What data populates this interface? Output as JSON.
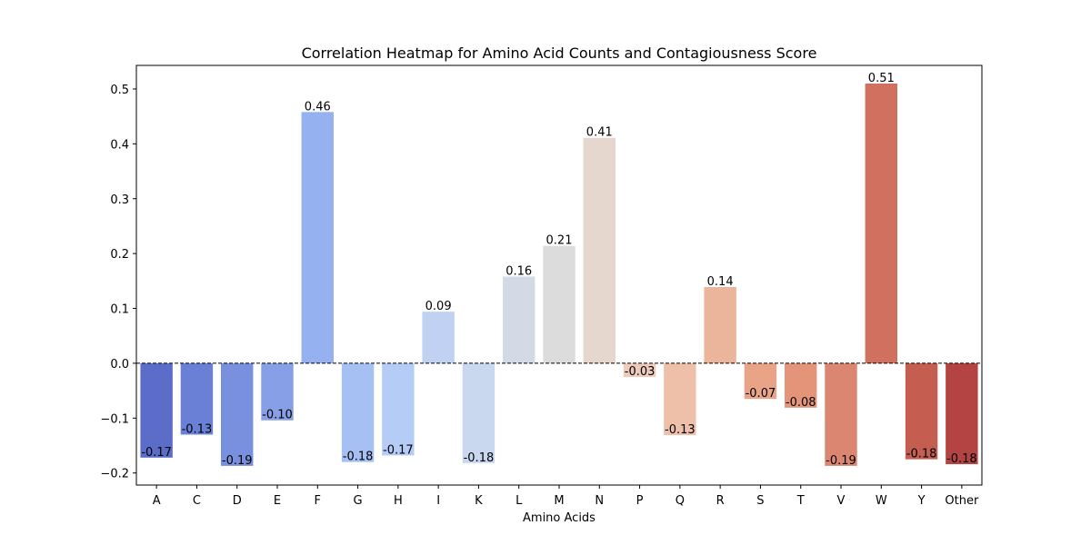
{
  "chart_data": {
    "type": "bar",
    "title": "Correlation Heatmap for Amino Acid Counts and Contagiousness Score",
    "xlabel": "Amino Acids",
    "ylabel": "",
    "categories": [
      "A",
      "C",
      "D",
      "E",
      "F",
      "G",
      "H",
      "I",
      "K",
      "L",
      "M",
      "N",
      "P",
      "Q",
      "R",
      "S",
      "T",
      "V",
      "W",
      "Y",
      "Other"
    ],
    "values": [
      -0.172,
      -0.13,
      -0.187,
      -0.104,
      0.458,
      -0.18,
      -0.168,
      0.094,
      -0.182,
      0.158,
      0.214,
      0.411,
      -0.025,
      -0.131,
      0.139,
      -0.065,
      -0.081,
      -0.187,
      0.51,
      -0.175,
      -0.184
    ],
    "value_labels": [
      "-0.17",
      "-0.13",
      "-0.19",
      "-0.10",
      "0.46",
      "-0.18",
      "-0.17",
      "0.09",
      "-0.18",
      "0.16",
      "0.21",
      "0.41",
      "-0.03",
      "-0.13",
      "0.14",
      "-0.07",
      "-0.08",
      "-0.19",
      "0.51",
      "-0.18",
      "-0.18"
    ],
    "bar_colors": [
      "#5b6dc8",
      "#6a80d6",
      "#7890dd",
      "#879fe6",
      "#96b1ef",
      "#a6c0f4",
      "#b5ccf7",
      "#c0d1f1",
      "#c9d7ef",
      "#d4dae5",
      "#dddcdc",
      "#e5d6ce",
      "#efcbbb",
      "#eec0a9",
      "#ebb59b",
      "#e9a488",
      "#e49479",
      "#db8670",
      "#d0705f",
      "#c35e50",
      "#b44343"
    ],
    "y_ticks": [
      0.5,
      0.4,
      0.3,
      0.2,
      0.1,
      0.0,
      -0.1,
      -0.2
    ],
    "y_tick_labels": [
      "0.5",
      "0.4",
      "0.3",
      "0.2",
      "0.1",
      "0.0",
      "−0.1",
      "−0.2"
    ],
    "ylim": [
      -0.222,
      0.543
    ],
    "reference_line": 0,
    "grid": false
  }
}
